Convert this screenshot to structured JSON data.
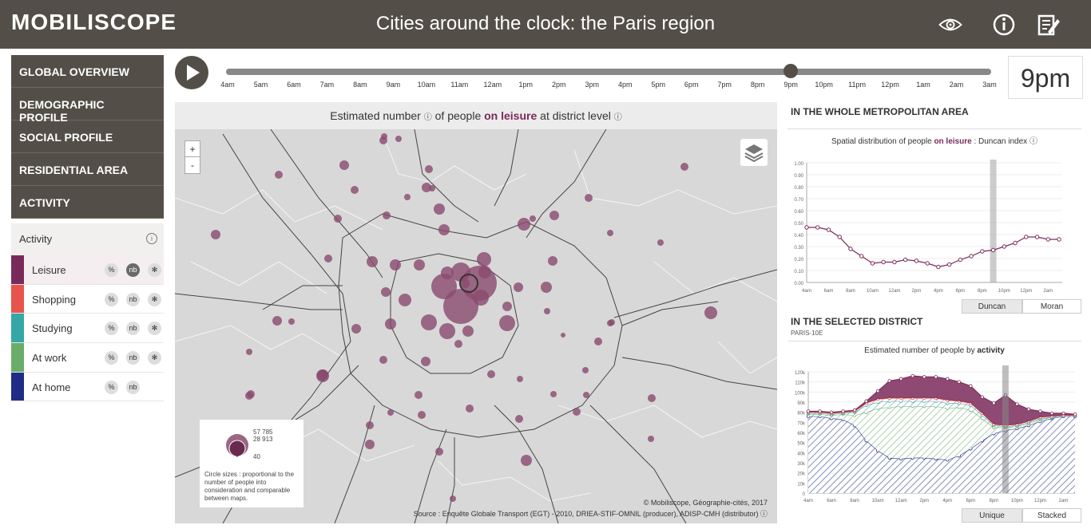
{
  "header": {
    "brand": "MOBILISCOPE",
    "title": "Cities around the clock: the Paris region",
    "icons": [
      "eye-icon",
      "info-icon",
      "edit-icon"
    ]
  },
  "sidebar": {
    "items": [
      {
        "label": "GLOBAL OVERVIEW"
      },
      {
        "label": "DEMOGRAPHIC PROFILE"
      },
      {
        "label": "SOCIAL PROFILE"
      },
      {
        "label": "RESIDENTIAL AREA"
      },
      {
        "label": "ACTIVITY"
      }
    ],
    "subpanel_title": "Activity",
    "activities": [
      {
        "label": "Leisure",
        "color": "#7a2a5a",
        "selected": true,
        "btns": [
          "%",
          "nb",
          "✻"
        ]
      },
      {
        "label": "Shopping",
        "color": "#e8544c",
        "btns": [
          "%",
          "nb",
          "✻"
        ]
      },
      {
        "label": "Studying",
        "color": "#35a7a6",
        "btns": [
          "%",
          "nb",
          "✻"
        ]
      },
      {
        "label": "At work",
        "color": "#6aad6a",
        "btns": [
          "%",
          "nb",
          "✻"
        ]
      },
      {
        "label": "At home",
        "color": "#1f2d86",
        "btns": [
          "%",
          "nb"
        ]
      }
    ]
  },
  "timeline": {
    "hours": [
      "4am",
      "5am",
      "6am",
      "7am",
      "8am",
      "9am",
      "10am",
      "11am",
      "12am",
      "1pm",
      "2pm",
      "3pm",
      "4pm",
      "5pm",
      "6pm",
      "7pm",
      "8pm",
      "9pm",
      "10pm",
      "11pm",
      "12pm",
      "1am",
      "2am",
      "3am"
    ],
    "current_hour": "9pm",
    "position": 17
  },
  "map": {
    "title_pre": "Estimated number",
    "title_mid": "of people",
    "title_hl": "on leisure",
    "title_post": "at district level",
    "zoom_in": "+",
    "zoom_out": "-",
    "legend": {
      "max": "57 785",
      "mid": "28 913",
      "min": "40",
      "note": "Circle sizes : proportional to the number of people into consideration and comparable between maps."
    },
    "copyright": "© Mobiliscope, Géographie-cités, 2017",
    "source": "Source : Enquête Globale Transport (EGT) - 2010, DRIEA-STIF-OMNIL (producer), ADISP-CMH (distributor) ⓘ"
  },
  "metro": {
    "section_title": "IN THE WHOLE METROPOLITAN AREA",
    "caption_pre": "Spatial distribution of people",
    "caption_hl": "on leisure",
    "caption_post": ": Duncan index ⓘ",
    "tabs": [
      "Duncan",
      "Moran"
    ]
  },
  "district": {
    "section_title": "IN THE SELECTED DISTRICT",
    "district_name": "PARIS-10E",
    "caption_pre": "Estimated number of people by",
    "caption_hl": "activity",
    "tabs": [
      "Unique",
      "Stacked"
    ]
  },
  "chart_data": [
    {
      "type": "line",
      "title": "Spatial distribution of people on leisure : Duncan index",
      "x": [
        "4am",
        "5am",
        "6am",
        "7am",
        "8am",
        "9am",
        "10am",
        "11am",
        "12am",
        "1pm",
        "2pm",
        "3pm",
        "4pm",
        "5pm",
        "6pm",
        "7pm",
        "8pm",
        "9pm",
        "10pm",
        "11pm",
        "12pm",
        "1am",
        "2am",
        "3am"
      ],
      "xticks": [
        "4am",
        "6am",
        "8am",
        "10am",
        "12am",
        "2pm",
        "4pm",
        "6pm",
        "8pm",
        "10pm",
        "12pm",
        "2am"
      ],
      "series": [
        {
          "values": [
            0.46,
            0.46,
            0.44,
            0.38,
            0.28,
            0.22,
            0.16,
            0.17,
            0.17,
            0.19,
            0.18,
            0.16,
            0.13,
            0.15,
            0.19,
            0.22,
            0.26,
            0.27,
            0.3,
            0.33,
            0.38,
            0.38,
            0.36,
            0.36
          ],
          "color": "#7a2a5a"
        }
      ],
      "ylim": [
        0,
        1
      ],
      "yticks": [
        "0.00",
        "0.10",
        "0.20",
        "0.30",
        "0.40",
        "0.50",
        "0.60",
        "0.70",
        "0.80",
        "0.90",
        "1.00"
      ],
      "highlight_index": 17
    },
    {
      "type": "area",
      "title": "Estimated number of people by activity",
      "x": [
        "4am",
        "5am",
        "6am",
        "7am",
        "8am",
        "9am",
        "10am",
        "11am",
        "12am",
        "1pm",
        "2pm",
        "3pm",
        "4pm",
        "5pm",
        "6pm",
        "7pm",
        "8pm",
        "9pm",
        "10pm",
        "11pm",
        "12pm",
        "1am",
        "2am",
        "3am"
      ],
      "xticks": [
        "4am",
        "6am",
        "8am",
        "10am",
        "12am",
        "2pm",
        "4pm",
        "6pm",
        "8pm",
        "10pm",
        "12pm",
        "2am"
      ],
      "yticks": [
        "0",
        "10k",
        "20k",
        "30k",
        "40k",
        "50k",
        "60k",
        "70k",
        "80k",
        "90k",
        "100k",
        "110k",
        "120k"
      ],
      "ylim": [
        0,
        120000
      ],
      "stacked": true,
      "series": [
        {
          "name": "At home",
          "color": "#1f2d86",
          "values": [
            76000,
            76000,
            74000,
            73000,
            67000,
            52000,
            42000,
            35000,
            34000,
            35000,
            35000,
            34000,
            33000,
            37000,
            44000,
            52000,
            59000,
            62000,
            64000,
            67000,
            71000,
            74000,
            76000,
            76000
          ]
        },
        {
          "name": "At work",
          "color": "#6aad6a",
          "values": [
            2000,
            2000,
            3000,
            5000,
            10000,
            28000,
            42000,
            50000,
            52000,
            51000,
            51000,
            52000,
            51000,
            48000,
            38000,
            22000,
            6000,
            3000,
            2000,
            2000,
            2000,
            1000,
            1000,
            1000
          ]
        },
        {
          "name": "Studying",
          "color": "#35a7a6",
          "values": [
            1000,
            1000,
            1000,
            1000,
            3000,
            7000,
            6000,
            6000,
            5000,
            5000,
            5000,
            5000,
            5000,
            4000,
            5000,
            3000,
            2000,
            1000,
            1000,
            1000,
            1000,
            0,
            0,
            0
          ]
        },
        {
          "name": "Shopping",
          "color": "#e8544c",
          "values": [
            1000,
            1000,
            1000,
            1000,
            1000,
            2000,
            3000,
            3000,
            3000,
            3000,
            3000,
            3000,
            3000,
            2000,
            2000,
            2000,
            1000,
            1000,
            1000,
            1000,
            1000,
            1000,
            0,
            0
          ]
        },
        {
          "name": "Leisure",
          "color": "#7a2a5a",
          "values": [
            1000,
            1000,
            1000,
            1000,
            1000,
            2000,
            8000,
            17000,
            19000,
            22000,
            21000,
            21000,
            21000,
            19000,
            17000,
            16000,
            21000,
            30000,
            20000,
            12000,
            6000,
            3000,
            2000,
            1000
          ]
        }
      ],
      "highlight_index": 17
    }
  ]
}
